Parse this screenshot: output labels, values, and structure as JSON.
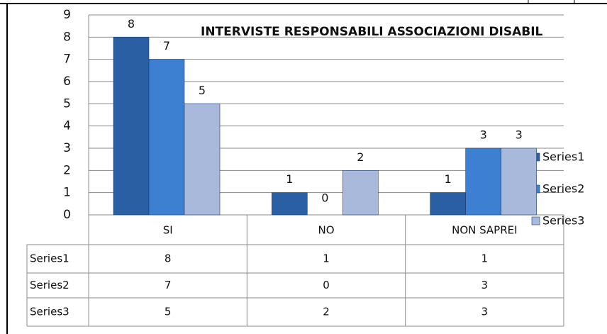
{
  "chart_data": {
    "type": "bar",
    "title": "INTERVISTE RESPONSABILI ASSOCIAZIONI  DISABIL",
    "categories": [
      "SI",
      "NO",
      "NON SAPREI"
    ],
    "series": [
      {
        "name": "Series1",
        "color": "#2b5fa3",
        "values": [
          8,
          1,
          1
        ]
      },
      {
        "name": "Series2",
        "color": "#3d80d2",
        "values": [
          7,
          0,
          3
        ]
      },
      {
        "name": "Series3",
        "color": "#a9b9db",
        "values": [
          5,
          2,
          3
        ]
      }
    ],
    "ylim": [
      0,
      9
    ],
    "yticks": [
      0,
      1,
      2,
      3,
      4,
      5,
      6,
      7,
      8,
      9
    ],
    "grid": true,
    "legend": "right",
    "data_table": true
  }
}
